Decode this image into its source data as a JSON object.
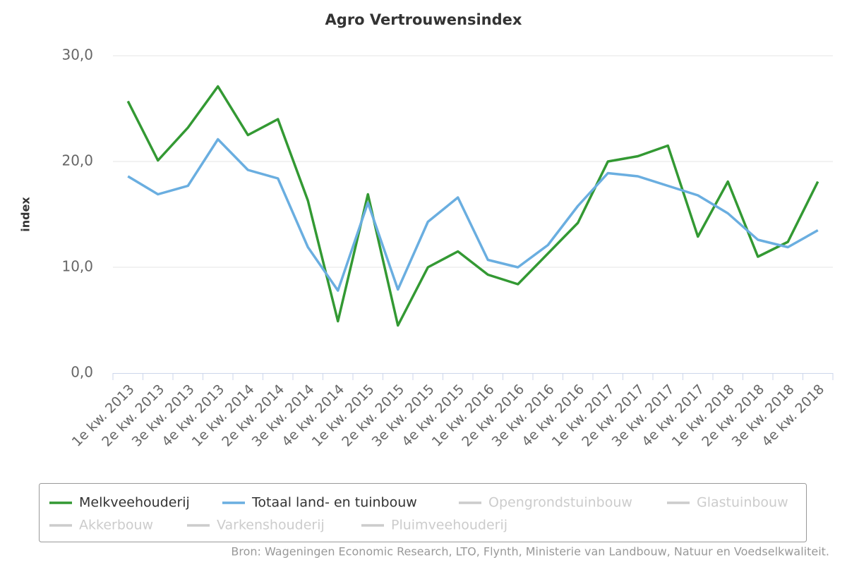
{
  "chart_data": {
    "type": "line",
    "title": "Agro Vertrouwensindex",
    "y_label": "index",
    "categories": [
      "1e kw. 2013",
      "2e kw. 2013",
      "3e kw. 2013",
      "4e kw. 2013",
      "1e kw. 2014",
      "2e kw. 2014",
      "3e kw. 2014",
      "4e kw. 2014",
      "1e kw. 2015",
      "2e kw. 2015",
      "3e kw. 2015",
      "4e kw. 2015",
      "1e kw. 2016",
      "2e kw. 2016",
      "3e kw. 2016",
      "4e kw. 2016",
      "1e kw. 2017",
      "2e kw. 2017",
      "3e kw. 2017",
      "4e kw. 2017",
      "1e kw. 2018",
      "2e kw. 2018",
      "3e kw. 2018",
      "4e kw. 2018"
    ],
    "series": [
      {
        "name": "Melkveehouderij",
        "color": "#339933",
        "values": [
          25.7,
          20.1,
          23.2,
          27.1,
          22.5,
          24.0,
          16.3,
          4.9,
          16.9,
          4.5,
          10.0,
          11.5,
          9.3,
          8.4,
          11.3,
          14.2,
          20.0,
          20.5,
          21.5,
          12.9,
          18.1,
          11.0,
          12.4,
          18.1
        ]
      },
      {
        "name": "Totaal land- en tuinbouw",
        "color": "#6aaee0",
        "values": [
          18.6,
          16.9,
          17.7,
          22.1,
          19.2,
          18.4,
          11.9,
          7.8,
          16.1,
          7.9,
          14.3,
          16.6,
          10.7,
          10.0,
          12.1,
          15.8,
          18.9,
          18.6,
          17.7,
          16.8,
          15.1,
          12.6,
          11.9,
          13.5
        ]
      },
      {
        "name": "Opengrondstuinbouw",
        "color": "#cccccc",
        "visible": false
      },
      {
        "name": "Glastuinbouw",
        "color": "#cccccc",
        "visible": false
      },
      {
        "name": "Akkerbouw",
        "color": "#cccccc",
        "visible": false
      },
      {
        "name": "Varkenshouderij",
        "color": "#cccccc",
        "visible": false
      },
      {
        "name": "Pluimveehouderij",
        "color": "#cccccc",
        "visible": false
      }
    ],
    "ylim": [
      0,
      30
    ],
    "yticks": [
      {
        "value": 0,
        "label": "0,0"
      },
      {
        "value": 10,
        "label": "10,0"
      },
      {
        "value": 20,
        "label": "20,0"
      },
      {
        "value": 30,
        "label": "30,0"
      }
    ],
    "grid": true,
    "legend": "bottom",
    "source": "Bron: Wageningen Economic Research, LTO, Flynth, Ministerie van Landbouw, Natuur en Voedselkwaliteit."
  }
}
